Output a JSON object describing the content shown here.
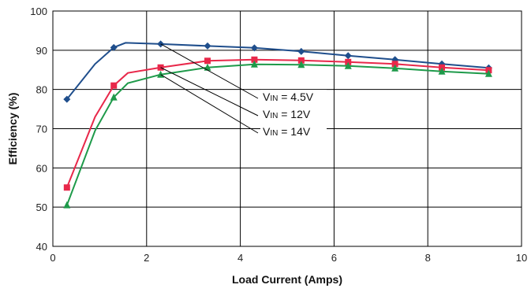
{
  "chart_data": {
    "type": "line",
    "xlabel": "Load Current (Amps)",
    "ylabel": "Efficiency (%)",
    "xlim": [
      0,
      10
    ],
    "ylim": [
      40,
      100
    ],
    "x_ticks": [
      0,
      2,
      4,
      6,
      8,
      10
    ],
    "y_ticks": [
      40,
      50,
      60,
      70,
      80,
      90,
      100
    ],
    "grid": true,
    "legend": "none",
    "series": [
      {
        "name": "V_IN = 4.5V",
        "label_main": "V",
        "label_sub": "IN",
        "label_rest": " = 4.5V",
        "color": "#1f4e8c",
        "marker": "diamond",
        "x": [
          0.3,
          0.9,
          1.3,
          1.55,
          2.3,
          3.3,
          4.3,
          5.3,
          6.3,
          7.3,
          8.3,
          9.3
        ],
        "y": [
          77.5,
          86.5,
          90.7,
          91.9,
          91.6,
          91.1,
          90.6,
          89.7,
          88.6,
          87.6,
          86.5,
          85.5
        ]
      },
      {
        "name": "V_IN = 12V",
        "label_main": "V",
        "label_sub": "IN",
        "label_rest": " = 12V",
        "color": "#e8284a",
        "marker": "square",
        "x": [
          0.3,
          0.9,
          1.3,
          1.6,
          2.3,
          3.3,
          4.3,
          5.3,
          6.3,
          7.3,
          8.3,
          9.3
        ],
        "y": [
          55,
          73,
          81,
          84.2,
          85.6,
          87.3,
          87.6,
          87.4,
          87.0,
          86.5,
          85.6,
          84.9
        ]
      },
      {
        "name": "V_IN = 14V",
        "label_main": "V",
        "label_sub": "IN",
        "label_rest": " = 14V",
        "color": "#1e9a4a",
        "marker": "triangle",
        "x": [
          0.3,
          0.9,
          1.3,
          1.6,
          2.3,
          3.3,
          4.3,
          5.3,
          6.3,
          7.3,
          8.3,
          9.3
        ],
        "y": [
          50.5,
          69.5,
          78,
          81.6,
          83.8,
          85.6,
          86.4,
          86.3,
          86.0,
          85.4,
          84.6,
          84.0
        ]
      }
    ]
  }
}
